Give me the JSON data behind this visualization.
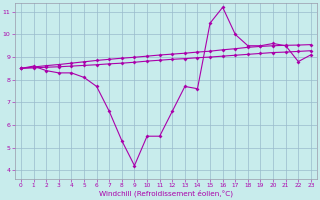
{
  "xlabel": "Windchill (Refroidissement éolien,°C)",
  "bg_color": "#c8ecec",
  "line_color": "#aa00aa",
  "grid_color": "#99bbcc",
  "xlim": [
    -0.5,
    23.5
  ],
  "ylim": [
    3.6,
    11.4
  ],
  "yticks": [
    4,
    5,
    6,
    7,
    8,
    9,
    10,
    11
  ],
  "xticks": [
    0,
    1,
    2,
    3,
    4,
    5,
    6,
    7,
    8,
    9,
    10,
    11,
    12,
    13,
    14,
    15,
    16,
    17,
    18,
    19,
    20,
    21,
    22,
    23
  ],
  "x": [
    0,
    1,
    2,
    3,
    4,
    5,
    6,
    7,
    8,
    9,
    10,
    11,
    12,
    13,
    14,
    15,
    16,
    17,
    18,
    19,
    20,
    21,
    22,
    23
  ],
  "y_main": [
    8.5,
    8.6,
    8.4,
    8.3,
    8.3,
    8.1,
    7.7,
    6.6,
    5.3,
    4.2,
    5.5,
    5.5,
    6.6,
    7.7,
    7.6,
    10.5,
    11.2,
    10.0,
    9.5,
    9.5,
    9.6,
    9.5,
    8.8,
    9.1
  ],
  "y_line2": [
    8.5,
    8.52,
    8.55,
    8.57,
    8.6,
    8.63,
    8.66,
    8.7,
    8.73,
    8.77,
    8.82,
    8.86,
    8.9,
    8.93,
    8.97,
    9.0,
    9.04,
    9.08,
    9.12,
    9.16,
    9.2,
    9.22,
    9.25,
    9.28
  ],
  "y_line3": [
    8.5,
    8.56,
    8.62,
    8.67,
    8.73,
    8.79,
    8.85,
    8.9,
    8.95,
    8.99,
    9.04,
    9.09,
    9.13,
    9.17,
    9.22,
    9.26,
    9.32,
    9.37,
    9.43,
    9.47,
    9.5,
    9.52,
    9.53,
    9.55
  ]
}
